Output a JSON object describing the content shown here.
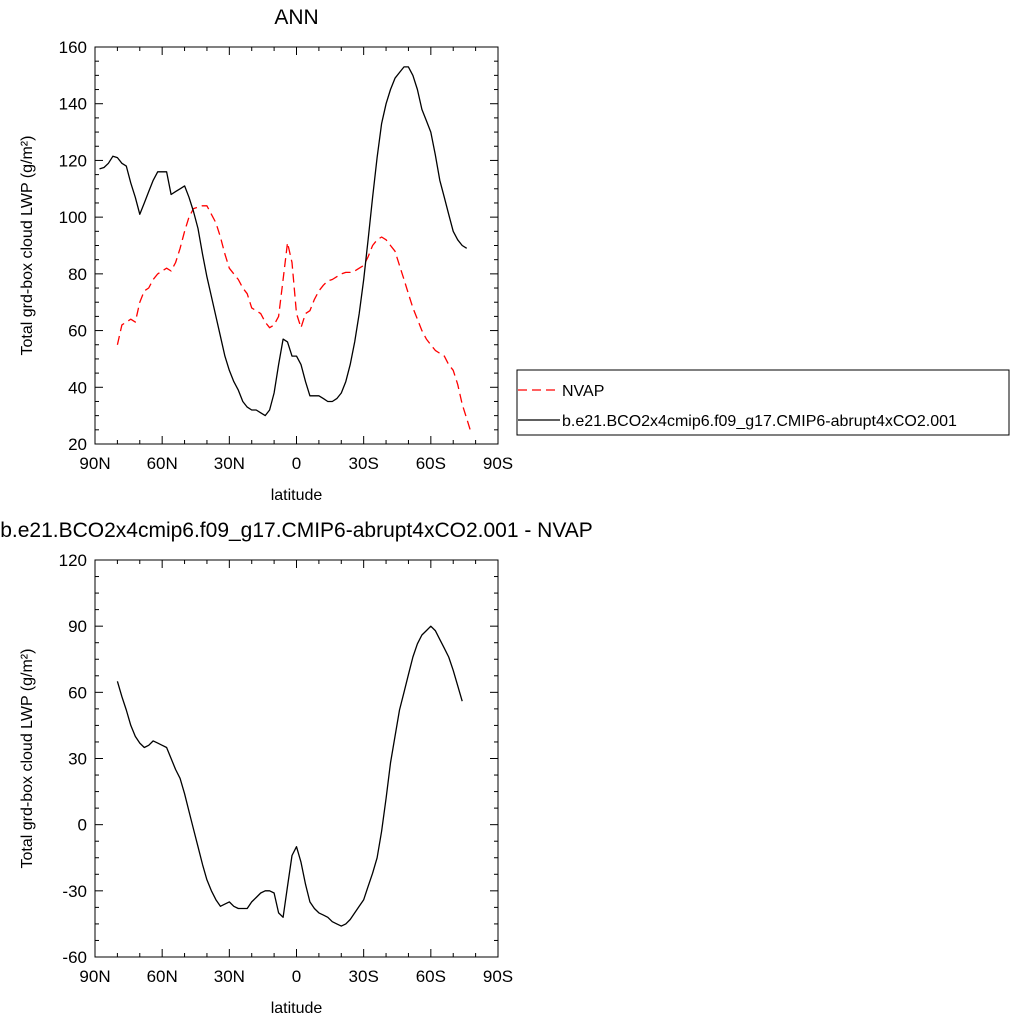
{
  "chart_data": [
    {
      "type": "line",
      "title": "ANN",
      "xlabel": "latitude",
      "ylabel": "Total grd-box cloud LWP (g/m²)",
      "xlim": [
        90,
        -90
      ],
      "ylim": [
        20,
        160
      ],
      "x_ticks": [
        90,
        60,
        30,
        0,
        -30,
        -60,
        -90
      ],
      "x_tick_labels": [
        "90N",
        "60N",
        "30N",
        "0",
        "30S",
        "60S",
        "90S"
      ],
      "y_ticks": [
        20,
        40,
        60,
        80,
        100,
        120,
        140,
        160
      ],
      "y_tick_labels": [
        "20",
        "40",
        "60",
        "80",
        "100",
        "120",
        "140",
        "160"
      ],
      "legend": {
        "placement": "right",
        "entries": [
          "NVAP",
          "b.e21.BCO2x4cmip6.f09_g17.CMIP6-abrupt4xCO2.001"
        ]
      },
      "series": [
        {
          "name": "NVAP",
          "color": "#ff0000",
          "dash": "dashed",
          "x": [
            80,
            78,
            76,
            74,
            72,
            70,
            68,
            66,
            64,
            62,
            60,
            58,
            56,
            54,
            52,
            50,
            48,
            46,
            44,
            42,
            40,
            38,
            36,
            34,
            32,
            30,
            28,
            26,
            24,
            22,
            20,
            18,
            16,
            14,
            12,
            10,
            8,
            6,
            4,
            2,
            0,
            -2,
            -4,
            -6,
            -8,
            -10,
            -12,
            -14,
            -16,
            -18,
            -20,
            -22,
            -24,
            -26,
            -28,
            -30,
            -32,
            -34,
            -36,
            -38,
            -40,
            -42,
            -44,
            -46,
            -48,
            -50,
            -52,
            -54,
            -56,
            -58,
            -60,
            -62,
            -64,
            -66,
            -68,
            -70,
            -72,
            -74,
            -76,
            -78
          ],
          "y": [
            55,
            62,
            63,
            64,
            63,
            70,
            74,
            75,
            78,
            80,
            81,
            82,
            81,
            84,
            89,
            95,
            100,
            103,
            103.5,
            104,
            104,
            101,
            98,
            93,
            87,
            82,
            80,
            78,
            75,
            73,
            68,
            67,
            66,
            63,
            61,
            62,
            65,
            78,
            91,
            84,
            66,
            61,
            66,
            67,
            71,
            74,
            76,
            77.5,
            78,
            79,
            80,
            80.5,
            80.5,
            81,
            82,
            83,
            86,
            90,
            92,
            93,
            92,
            90,
            88,
            83,
            78,
            73,
            68,
            64,
            60,
            57,
            55,
            53,
            52,
            51,
            48,
            46,
            41,
            34,
            29,
            24
          ]
        },
        {
          "name": "b.e21.BCO2x4cmip6.f09_g17.CMIP6-abrupt4xCO2.001",
          "color": "#000000",
          "dash": "solid",
          "x": [
            88,
            86,
            84,
            82,
            80,
            78,
            76,
            74,
            72,
            70,
            68,
            66,
            64,
            62,
            60,
            58,
            56,
            54,
            52,
            50,
            48,
            46,
            44,
            42,
            40,
            38,
            36,
            34,
            32,
            30,
            28,
            26,
            24,
            22,
            20,
            18,
            16,
            14,
            12,
            10,
            8,
            6,
            4,
            2,
            0,
            -2,
            -4,
            -6,
            -8,
            -10,
            -12,
            -14,
            -16,
            -18,
            -20,
            -22,
            -24,
            -26,
            -28,
            -30,
            -32,
            -34,
            -36,
            -38,
            -40,
            -42,
            -44,
            -46,
            -48,
            -50,
            -52,
            -54,
            -56,
            -58,
            -60,
            -62,
            -64,
            -66,
            -68,
            -70,
            -72,
            -74,
            -76
          ],
          "y": [
            117,
            117.5,
            119,
            121.5,
            121,
            119,
            118,
            112,
            107,
            101,
            105,
            109,
            113,
            116,
            116,
            116,
            108,
            109,
            110,
            111,
            107,
            102,
            96,
            87,
            79,
            72,
            65,
            58,
            51,
            46,
            42,
            39,
            35,
            33,
            32,
            32,
            31,
            30,
            32,
            38,
            48,
            57,
            56,
            51,
            51,
            48,
            42,
            37,
            37,
            37,
            36,
            35,
            35,
            36,
            38,
            42,
            48,
            56,
            66,
            78,
            92,
            107,
            121,
            133,
            140,
            145,
            149,
            151,
            153,
            153,
            150,
            145,
            138,
            134,
            130,
            122,
            113,
            107,
            101,
            95,
            92,
            90,
            89
          ]
        }
      ]
    },
    {
      "type": "line",
      "title": "b.e21.BCO2x4cmip6.f09_g17.CMIP6-abrupt4xCO2.001 - NVAP",
      "xlabel": "latitude",
      "ylabel": "Total grd-box cloud LWP (g/m²)",
      "xlim": [
        90,
        -90
      ],
      "ylim": [
        -60,
        120
      ],
      "x_ticks": [
        90,
        60,
        30,
        0,
        -30,
        -60,
        -90
      ],
      "x_tick_labels": [
        "90N",
        "60N",
        "30N",
        "0",
        "30S",
        "60S",
        "90S"
      ],
      "y_ticks": [
        -60,
        -30,
        0,
        30,
        60,
        90,
        120
      ],
      "y_tick_labels": [
        "-60",
        "-30",
        "0",
        "30",
        "60",
        "90",
        "120"
      ],
      "series": [
        {
          "color": "#000000",
          "dash": "solid",
          "x": [
            80,
            78,
            76,
            74,
            72,
            70,
            68,
            66,
            64,
            62,
            60,
            58,
            56,
            54,
            52,
            50,
            48,
            46,
            44,
            42,
            40,
            38,
            36,
            34,
            32,
            30,
            28,
            26,
            24,
            22,
            20,
            18,
            16,
            14,
            12,
            10,
            8,
            6,
            4,
            2,
            0,
            -2,
            -4,
            -6,
            -8,
            -10,
            -12,
            -14,
            -16,
            -18,
            -20,
            -22,
            -24,
            -26,
            -28,
            -30,
            -32,
            -34,
            -36,
            -38,
            -40,
            -42,
            -44,
            -46,
            -48,
            -50,
            -52,
            -54,
            -56,
            -58,
            -60,
            -62,
            -64,
            -66,
            -68,
            -70,
            -72,
            -74
          ],
          "y": [
            65,
            58,
            52,
            45,
            40,
            37,
            35,
            36,
            38,
            37,
            36,
            35,
            30,
            25,
            21,
            14,
            6,
            -2,
            -10,
            -18,
            -25,
            -30,
            -34,
            -37,
            -36,
            -35,
            -37,
            -38,
            -38,
            -38,
            -35,
            -33,
            -31,
            -30,
            -30,
            -31,
            -40,
            -42,
            -28,
            -14,
            -10,
            -17,
            -27,
            -35,
            -38,
            -40,
            -41,
            -42,
            -44,
            -45,
            -46,
            -45,
            -43,
            -40,
            -37,
            -34,
            -28,
            -22,
            -15,
            -3,
            12,
            28,
            40,
            52,
            60,
            68,
            76,
            82,
            86,
            88,
            90,
            88,
            84,
            80,
            76,
            70,
            63,
            56
          ]
        }
      ]
    }
  ]
}
